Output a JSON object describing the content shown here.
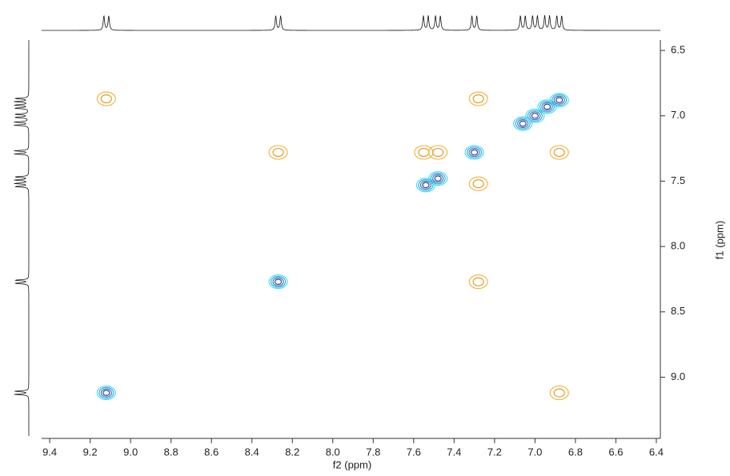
{
  "chart_data": {
    "type": "contour2d",
    "xlabel": "f2 (ppm)",
    "ylabel": "f1 (ppm)",
    "xlim": [
      9.44,
      6.38
    ],
    "ylim": [
      6.42,
      9.45
    ],
    "xticks": [
      9.4,
      9.2,
      {
        "value": 9,
        "label": "9.0"
      },
      8.8,
      8.6,
      8.4,
      8.2,
      {
        "value": 8,
        "label": "8.0"
      },
      7.8,
      7.6,
      7.4,
      7.2,
      {
        "value": 7,
        "label": "7.0"
      },
      6.8,
      6.6,
      6.4
    ],
    "yticks": [
      6.5,
      {
        "value": 7,
        "label": "7.0"
      },
      7.5,
      {
        "value": 8,
        "label": "8.0"
      },
      8.5,
      {
        "value": 9,
        "label": "9.0"
      }
    ],
    "series": [
      {
        "colors": [
          "#3fdcea",
          "#1ea8dc",
          "#2f6cc0",
          "#1b2f85"
        ],
        "x": [
          9.12,
          8.27,
          7.54,
          7.48,
          7.3,
          7.06,
          7.0,
          6.94,
          6.88
        ],
        "y": [
          9.12,
          8.27,
          7.53,
          7.48,
          7.28,
          7.06,
          7.0,
          6.93,
          6.88
        ]
      },
      {
        "colors": [
          "#f2b233",
          "#e0961c"
        ],
        "x": [
          9.12,
          8.27,
          7.55,
          7.48,
          7.28,
          7.28,
          7.28,
          6.88,
          6.88
        ],
        "y": [
          6.87,
          7.28,
          7.28,
          7.28,
          7.52,
          6.87,
          8.27,
          9.12,
          7.28
        ]
      }
    ]
  }
}
